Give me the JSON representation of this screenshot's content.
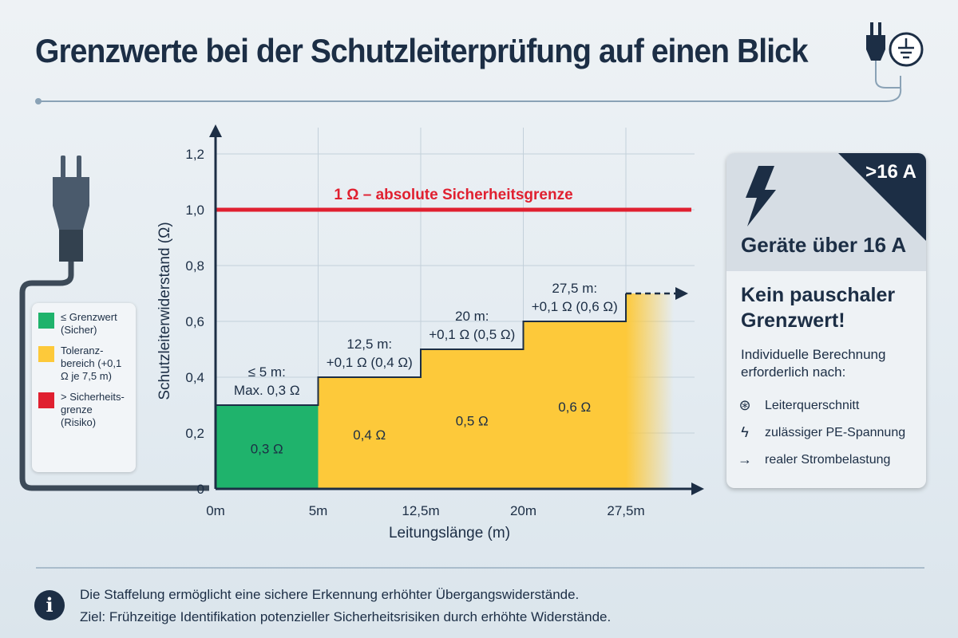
{
  "title": "Grenzwerte bei der Schutzleiterprüfung auf einen Blick",
  "legend": [
    {
      "label": "≤ Grenzwert (Sicher)",
      "color": "#1fb36c"
    },
    {
      "label": "Toleranz-bereich (+0,1 Ω je 7,5 m)",
      "color": "#fdc93a"
    },
    {
      "label": "> Sicherheits-grenze (Risiko)",
      "color": "#e02030"
    }
  ],
  "chart_data": {
    "type": "step-area",
    "xlabel": "Leitungslänge (m)",
    "ylabel": "Schutzleiterwiderstand (Ω)",
    "x_ticks": [
      "0m",
      "5m",
      "12,5m",
      "20m",
      "27,5m"
    ],
    "y_ticks": [
      "0",
      "0,2",
      "0,4",
      "0,6",
      "0,8",
      "1,0",
      "1,2"
    ],
    "ylim": [
      0,
      1.2
    ],
    "grid": true,
    "steps": [
      {
        "from": 0,
        "to": 5,
        "value": 0.3,
        "value_label": "0,3 Ω",
        "annotation": [
          "≤ 5 m:",
          "Max. 0,3 Ω"
        ],
        "color": "#1fb36c"
      },
      {
        "from": 5,
        "to": 12.5,
        "value": 0.4,
        "value_label": "0,4 Ω",
        "annotation": [
          "12,5 m:",
          "+0,1 Ω (0,4 Ω)"
        ],
        "color": "#fdc93a"
      },
      {
        "from": 12.5,
        "to": 20,
        "value": 0.5,
        "value_label": "0,5 Ω",
        "annotation": [
          "20 m:",
          "+0,1 Ω (0,5 Ω)"
        ],
        "color": "#fdc93a"
      },
      {
        "from": 20,
        "to": 27.5,
        "value": 0.6,
        "value_label": "0,6 Ω",
        "annotation": [
          "27,5 m:",
          "+0,1 Ω (0,6 Ω)"
        ],
        "color": "#fdc93a"
      },
      {
        "from": 27.5,
        "to": null,
        "value": 0.7,
        "color": "#fdc93a",
        "continues": true
      }
    ],
    "limit_line": {
      "value": 1.0,
      "label": "1 Ω – absolute Sicherheitsgrenze",
      "color": "#e02030"
    }
  },
  "panel": {
    "badge": ">16 A",
    "heading": "Geräte über 16 A",
    "key_message": "Kein pauschaler Grenzwert!",
    "intro": "Individuelle Berechnung erforderlich nach:",
    "items": [
      {
        "icon": "cable-icon",
        "label": "Leiterquerschnitt"
      },
      {
        "icon": "lightning-icon",
        "label": "zulässiger PE-Spannung"
      },
      {
        "icon": "arrow-right-icon",
        "label": "realer Strombelastung"
      }
    ]
  },
  "footer": {
    "line1": "Die Staffelung ermöglicht eine sichere Erkennung erhöhter Übergangswiderstände.",
    "line2": "Ziel: Frühzeitige Identifikation potenzieller Sicherheitsrisiken durch erhöhte Widerstände."
  }
}
